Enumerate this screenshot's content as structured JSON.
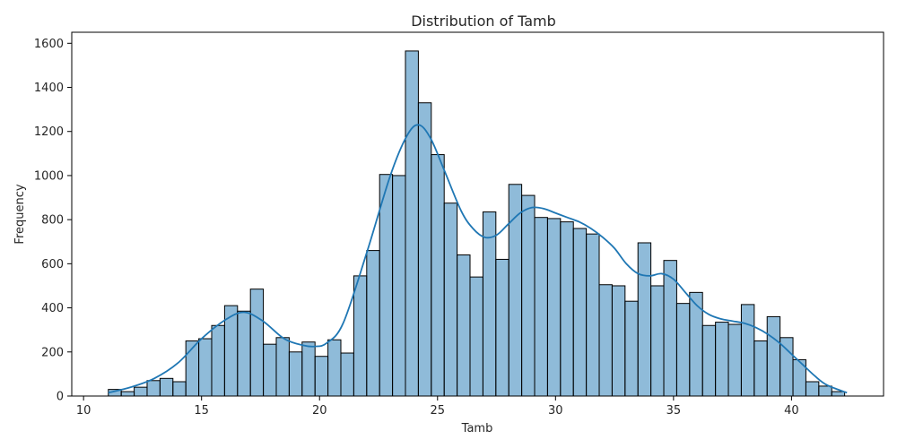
{
  "chart_data": {
    "type": "bar",
    "title": "Distribution of Tamb",
    "xlabel": "Tamb",
    "ylabel": "Frequency",
    "xlim": [
      9.5,
      43.9
    ],
    "ylim": [
      0,
      1650
    ],
    "xticks": [
      10,
      15,
      20,
      25,
      30,
      35,
      40
    ],
    "yticks": [
      0,
      200,
      400,
      600,
      800,
      1000,
      1200,
      1400,
      1600
    ],
    "grid": false,
    "bar_color": "#1f77b4",
    "bar_alpha": 0.5,
    "bar_edge_color": "#000000",
    "kde_color": "#1f77b4",
    "bins_start": 11.05,
    "bin_width": 0.5474,
    "values": [
      30,
      20,
      40,
      70,
      80,
      65,
      250,
      260,
      320,
      410,
      385,
      485,
      235,
      265,
      200,
      245,
      180,
      255,
      195,
      545,
      660,
      1005,
      1000,
      1565,
      1330,
      1095,
      875,
      640,
      540,
      835,
      620,
      960,
      910,
      810,
      805,
      790,
      760,
      735,
      505,
      500,
      430,
      695,
      500,
      615,
      420,
      470,
      320,
      335,
      325,
      415,
      250,
      360,
      265,
      165,
      65,
      45,
      20
    ],
    "kde": {
      "x": [
        11.05,
        12,
        13,
        14,
        15,
        16,
        16.8,
        17.6,
        18.5,
        19.3,
        19.8,
        20.3,
        21,
        22,
        23,
        23.7,
        24.2,
        24.7,
        25.3,
        26,
        26.5,
        27,
        27.5,
        28,
        28.5,
        29,
        29.5,
        30,
        30.5,
        31,
        31.5,
        32,
        32.5,
        33,
        33.5,
        34,
        34.5,
        35,
        35.5,
        36,
        36.5,
        37,
        37.5,
        38,
        38.5,
        39,
        39.5,
        40,
        40.5,
        41,
        41.5,
        42.35
      ],
      "y": [
        15,
        40,
        80,
        150,
        260,
        345,
        380,
        340,
        260,
        230,
        225,
        240,
        330,
        650,
        1000,
        1180,
        1230,
        1170,
        1020,
        840,
        760,
        720,
        730,
        780,
        830,
        855,
        850,
        830,
        810,
        790,
        760,
        720,
        670,
        600,
        555,
        545,
        555,
        530,
        470,
        410,
        370,
        350,
        340,
        330,
        310,
        280,
        240,
        190,
        140,
        90,
        50,
        15
      ]
    }
  }
}
